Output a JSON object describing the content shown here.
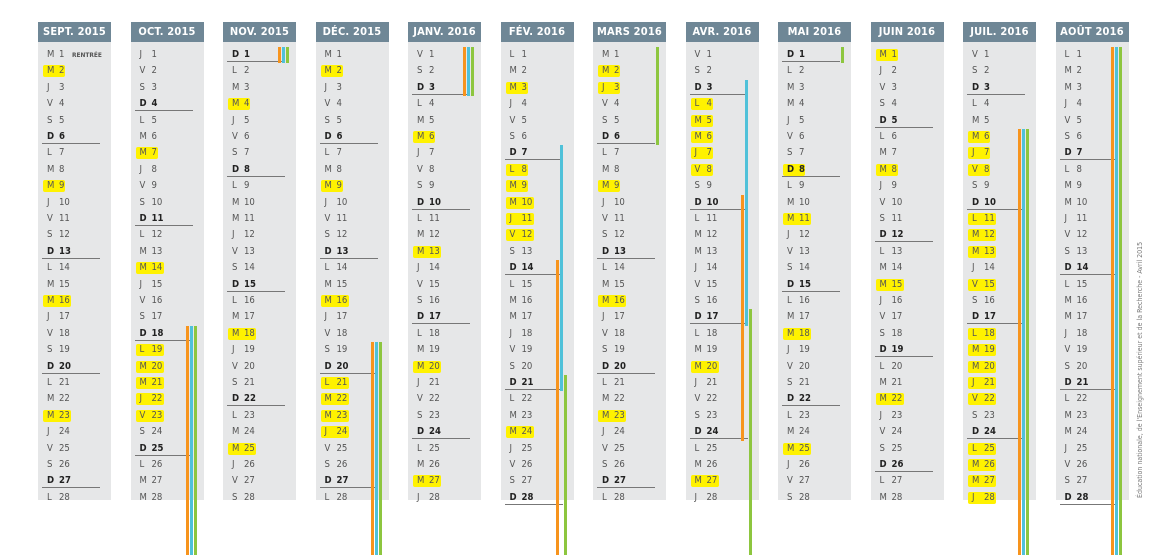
{
  "colors": {
    "highlight": "#fff200",
    "header": "#6f8796",
    "zone_a": "#f7941d",
    "zone_b": "#4fc1d9",
    "zone_c": "#8dc63f"
  },
  "credit": "Éducation nationale, de l'Enseignement supérieur et de la Recherche - Avril 2015",
  "months": [
    {
      "title": "SEPT. 2015",
      "letters": "MMJVSDLMMJVSDLMMJVSDLMMJVSDLM",
      "highlights": [
        2,
        9,
        16,
        23
      ],
      "bars": [],
      "notes": {
        "1": "RENTRÉE"
      }
    },
    {
      "title": "OCT. 2015",
      "letters": "JVSDLMMJVSDLMMJVSDLMMJVSDLMMJ",
      "highlights": [
        7,
        14,
        19,
        20,
        21,
        22,
        23
      ],
      "bars": [
        {
          "zone": "a",
          "start": 18,
          "end": 31
        },
        {
          "zone": "b",
          "start": 18,
          "end": 31
        },
        {
          "zone": "c",
          "start": 18,
          "end": 31
        }
      ],
      "notes": {}
    },
    {
      "title": "NOV. 2015",
      "letters": "DLMMJVSDLMMJVSDLMMJVSDLMMJVSD",
      "highlights": [
        4,
        18,
        25
      ],
      "bars": [
        {
          "zone": "a",
          "start": 1,
          "end": 1
        },
        {
          "zone": "b",
          "start": 1,
          "end": 1
        },
        {
          "zone": "c",
          "start": 1,
          "end": 1
        }
      ],
      "notes": {}
    },
    {
      "title": "DÉC. 2015",
      "letters": "MMJVSDLMMJVSDLMMJVSDLMMJVSDLMM",
      "highlights": [
        2,
        9,
        16,
        21,
        22,
        23,
        24
      ],
      "bars": [
        {
          "zone": "a",
          "start": 19,
          "end": 31
        },
        {
          "zone": "b",
          "start": 19,
          "end": 31
        },
        {
          "zone": "c",
          "start": 19,
          "end": 31
        }
      ],
      "notes": {}
    },
    {
      "title": "JANV. 2016",
      "letters": "VSDLMMJVSDLMMJVSDLMMJVSDLMMJVS",
      "highlights": [
        6,
        13,
        20,
        27
      ],
      "bars": [
        {
          "zone": "a",
          "start": 1,
          "end": 3
        },
        {
          "zone": "b",
          "start": 1,
          "end": 3
        },
        {
          "zone": "c",
          "start": 1,
          "end": 3
        }
      ],
      "notes": {}
    },
    {
      "title": "FÉV. 2016",
      "letters": "LMMJVSDLMMJVSDLMMJVSDLMMJVSDLM",
      "highlights": [
        3,
        8,
        9,
        10,
        11,
        12,
        24
      ],
      "bars": [
        {
          "zone": "a",
          "start": 14,
          "end": 31
        },
        {
          "zone": "b",
          "start": 7,
          "end": 21
        },
        {
          "zone": "c",
          "start": 21,
          "end": 31
        }
      ],
      "notes": {}
    },
    {
      "title": "MARS 2016",
      "letters": "MMJVSDLMMJVSDLMMJVSDLMMJVSDLMM",
      "highlights": [
        2,
        3,
        9,
        16,
        23
      ],
      "bars": [
        {
          "zone": "c",
          "start": 1,
          "end": 6
        }
      ],
      "notes": {}
    },
    {
      "title": "AVR. 2016",
      "letters": "VSDLMMJVSDLMMJVSDLMMJVSDLMMJVS",
      "highlights": [
        4,
        5,
        6,
        7,
        8,
        20,
        27
      ],
      "bars": [
        {
          "zone": "a",
          "start": 10,
          "end": 24
        },
        {
          "zone": "b",
          "start": 3,
          "end": 17
        },
        {
          "zone": "c",
          "start": 17,
          "end": 31
        }
      ],
      "notes": {}
    },
    {
      "title": "MAI 2016",
      "letters": "DLMMJVSDLMMJVSDLMMJVSDLMMJVSDL",
      "highlights": [
        8,
        11,
        18,
        25
      ],
      "bars": [
        {
          "zone": "c",
          "start": 1,
          "end": 1
        }
      ],
      "notes": {}
    },
    {
      "title": "JUIN 2016",
      "letters": "MJVSDLMMJVSDLMMJVSDLMMJVSDLMMJ",
      "highlights": [
        1,
        8,
        15,
        22
      ],
      "bars": [],
      "notes": {}
    },
    {
      "title": "JUIL. 2016",
      "letters": "VSDLMMJVSDLMMJVSDLMMJVSDLMMJVS",
      "highlights": [
        6,
        7,
        8,
        11,
        12,
        13,
        15,
        18,
        19,
        20,
        21,
        22,
        25,
        26,
        27,
        28
      ],
      "bars": [
        {
          "zone": "a",
          "start": 6,
          "end": 31
        },
        {
          "zone": "b",
          "start": 6,
          "end": 31
        },
        {
          "zone": "c",
          "start": 6,
          "end": 31
        }
      ],
      "notes": {}
    },
    {
      "title": "AOÛT 2016",
      "letters": "LMMJVSDLMMJVSDLMMJVSDLMMJVSDLM",
      "highlights": [],
      "bars": [
        {
          "zone": "a",
          "start": 1,
          "end": 31
        },
        {
          "zone": "b",
          "start": 1,
          "end": 31
        },
        {
          "zone": "c",
          "start": 1,
          "end": 31
        }
      ],
      "notes": {}
    }
  ]
}
